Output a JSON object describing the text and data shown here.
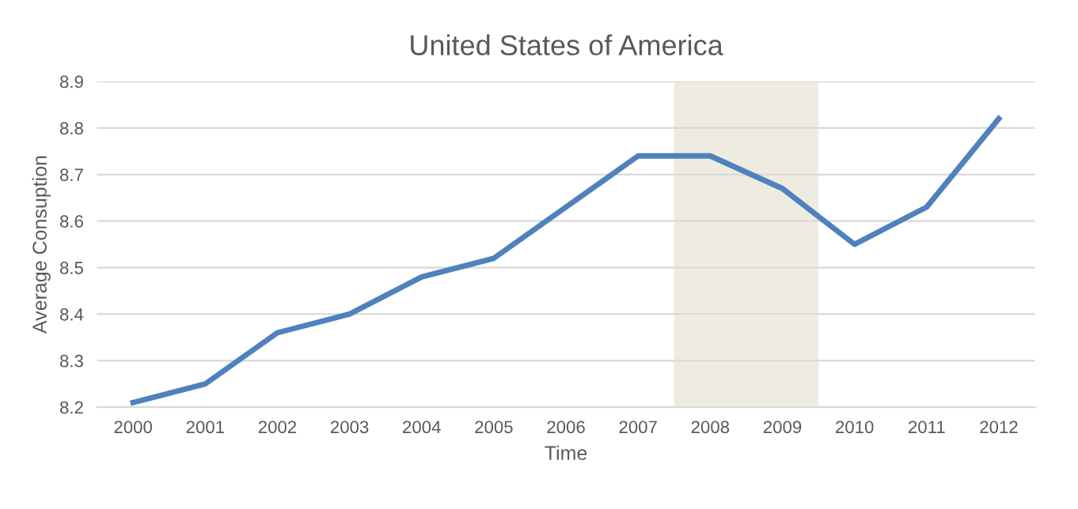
{
  "chart_data": {
    "type": "line",
    "title": "United States of America",
    "xlabel": "Time",
    "ylabel": "Average Consuption",
    "x": [
      2000,
      2001,
      2002,
      2003,
      2004,
      2005,
      2006,
      2007,
      2008,
      2009,
      2010,
      2011,
      2012
    ],
    "series": [
      {
        "color": "#4f81bd",
        "values": [
          8.21,
          8.25,
          8.36,
          8.4,
          8.48,
          8.52,
          8.63,
          8.74,
          8.74,
          8.67,
          8.55,
          8.63,
          8.82
        ]
      }
    ],
    "xlim": [
      1999.5,
      2012.5
    ],
    "xticks": [
      2000,
      2001,
      2002,
      2003,
      2004,
      2005,
      2006,
      2007,
      2008,
      2009,
      2010,
      2011,
      2012
    ],
    "ylim": [
      8.2,
      8.9
    ],
    "yticks": [
      {
        "value": 8.2,
        "label": "8.2"
      },
      {
        "value": 8.3,
        "label": "8.3"
      },
      {
        "value": 8.4,
        "label": "8.4"
      },
      {
        "value": 8.5,
        "label": "8.5"
      },
      {
        "value": 8.6,
        "label": "8.6"
      },
      {
        "value": 8.7,
        "label": "8.7"
      },
      {
        "value": 8.8,
        "label": "8.8"
      },
      {
        "value": 8.9,
        "label": "8.9"
      }
    ],
    "bands": [
      {
        "axis": "x",
        "from": 2007.5,
        "to": 2009.5,
        "color": "#eeece1"
      }
    ],
    "grid": "y",
    "line_style": "solid",
    "marker": "none"
  }
}
